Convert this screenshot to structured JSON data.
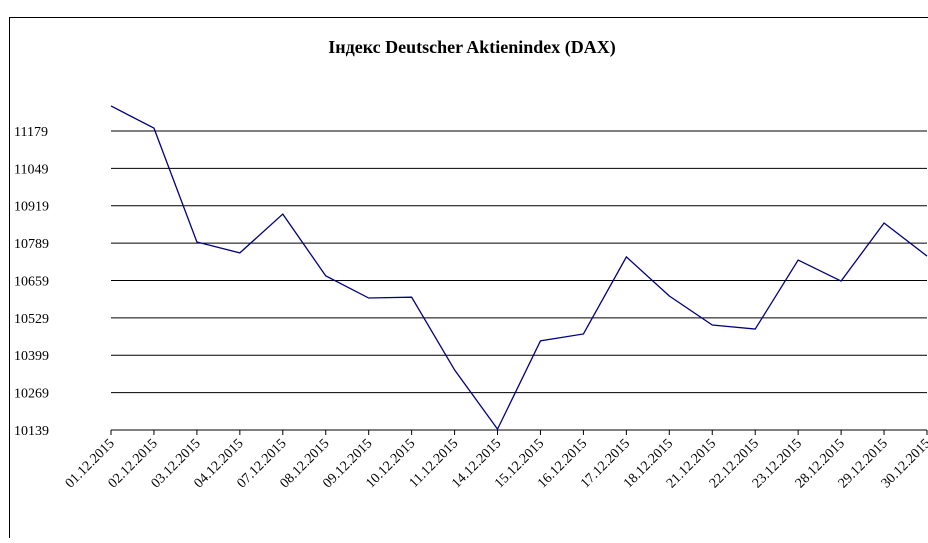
{
  "chart_data": {
    "type": "line",
    "title": "Індекс Deutscher Aktienindex (DAX)",
    "categories": [
      "01.12.2015",
      "02.12.2015",
      "03.12.2015",
      "04.12.2015",
      "07.12.2015",
      "08.12.2015",
      "09.12.2015",
      "10.12.2015",
      "11.12.2015",
      "14.12.2015",
      "15.12.2015",
      "16.12.2015",
      "17.12.2015",
      "18.12.2015",
      "21.12.2015",
      "22.12.2015",
      "23.12.2015",
      "28.12.2015",
      "29.12.2015",
      "30.12.2015"
    ],
    "series": [
      {
        "color": "#000080",
        "values": [
          11266,
          11189,
          10793,
          10755,
          10890,
          10675,
          10598,
          10601,
          10348,
          10142,
          10449,
          10473,
          10741,
          10605,
          10504,
          10490,
          10730,
          10657,
          10859,
          10744
        ]
      }
    ],
    "ylim": [
      10139,
      11309
    ],
    "yticks": [
      10139,
      10269,
      10399,
      10529,
      10659,
      10789,
      10919,
      11049,
      11179
    ],
    "grid": true
  }
}
